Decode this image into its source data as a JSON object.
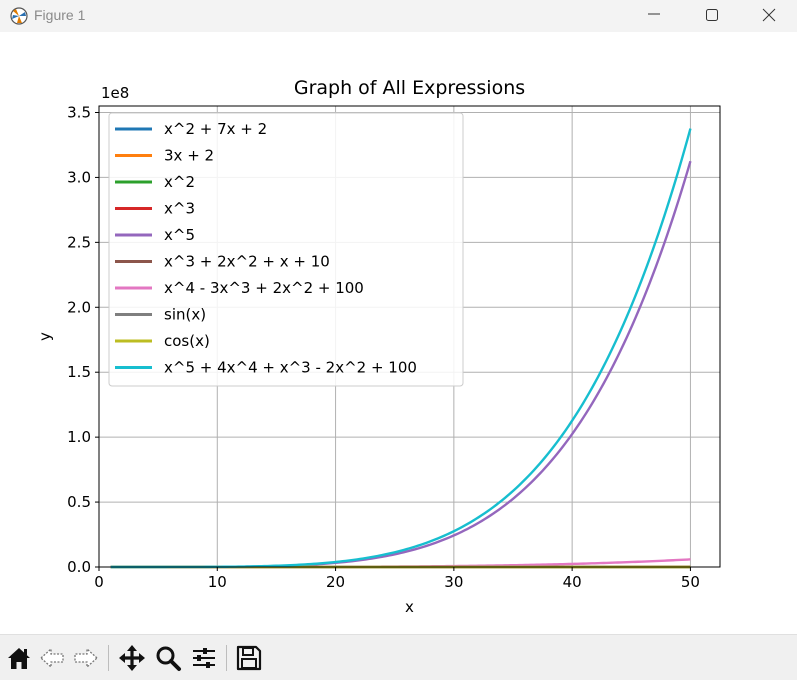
{
  "window": {
    "title": "Figure 1",
    "controls": {
      "minimize": "minimize-icon",
      "maximize": "maximize-icon",
      "close": "close-icon"
    }
  },
  "chart_data": {
    "type": "line",
    "title": "Graph of All Expressions",
    "xlabel": "x",
    "ylabel": "y",
    "y_offset_label": "1e8",
    "y_scale_factor": 100000000,
    "xlim": [
      0,
      52.5
    ],
    "ylim": [
      0,
      3.55
    ],
    "x_range_plotted": [
      1,
      50
    ],
    "xticks": [
      0,
      10,
      20,
      30,
      40,
      50
    ],
    "xtick_labels": [
      "0",
      "10",
      "20",
      "30",
      "40",
      "50"
    ],
    "yticks": [
      0,
      0.5,
      1.0,
      1.5,
      2.0,
      2.5,
      3.0,
      3.5
    ],
    "ytick_labels": [
      "0.0",
      "0.5",
      "1.0",
      "1.5",
      "2.0",
      "2.5",
      "3.0",
      "3.5"
    ],
    "grid": true,
    "legend_position": "upper-left",
    "series": [
      {
        "name": "x^2 + 7x + 2",
        "color": "#1f77b4"
      },
      {
        "name": "3x + 2",
        "color": "#ff7f0e"
      },
      {
        "name": "x^2",
        "color": "#2ca02c"
      },
      {
        "name": "x^3",
        "color": "#d62728"
      },
      {
        "name": "x^5",
        "color": "#9467bd"
      },
      {
        "name": "x^3 + 2x^2 + x + 10",
        "color": "#8c564b"
      },
      {
        "name": "x^4 - 3x^3 + 2x^2 + 100",
        "color": "#e377c2"
      },
      {
        "name": "sin(x)",
        "color": "#7f7f7f"
      },
      {
        "name": "cos(x)",
        "color": "#bcbd22"
      },
      {
        "name": "x^5 + 4x^4 + x^3 - 2x^2 + 100",
        "color": "#17becf"
      }
    ]
  },
  "toolbar": {
    "buttons": [
      "home-icon",
      "back-icon",
      "forward-icon",
      "pan-icon",
      "zoom-icon",
      "configure-subplots-icon",
      "save-icon"
    ]
  }
}
